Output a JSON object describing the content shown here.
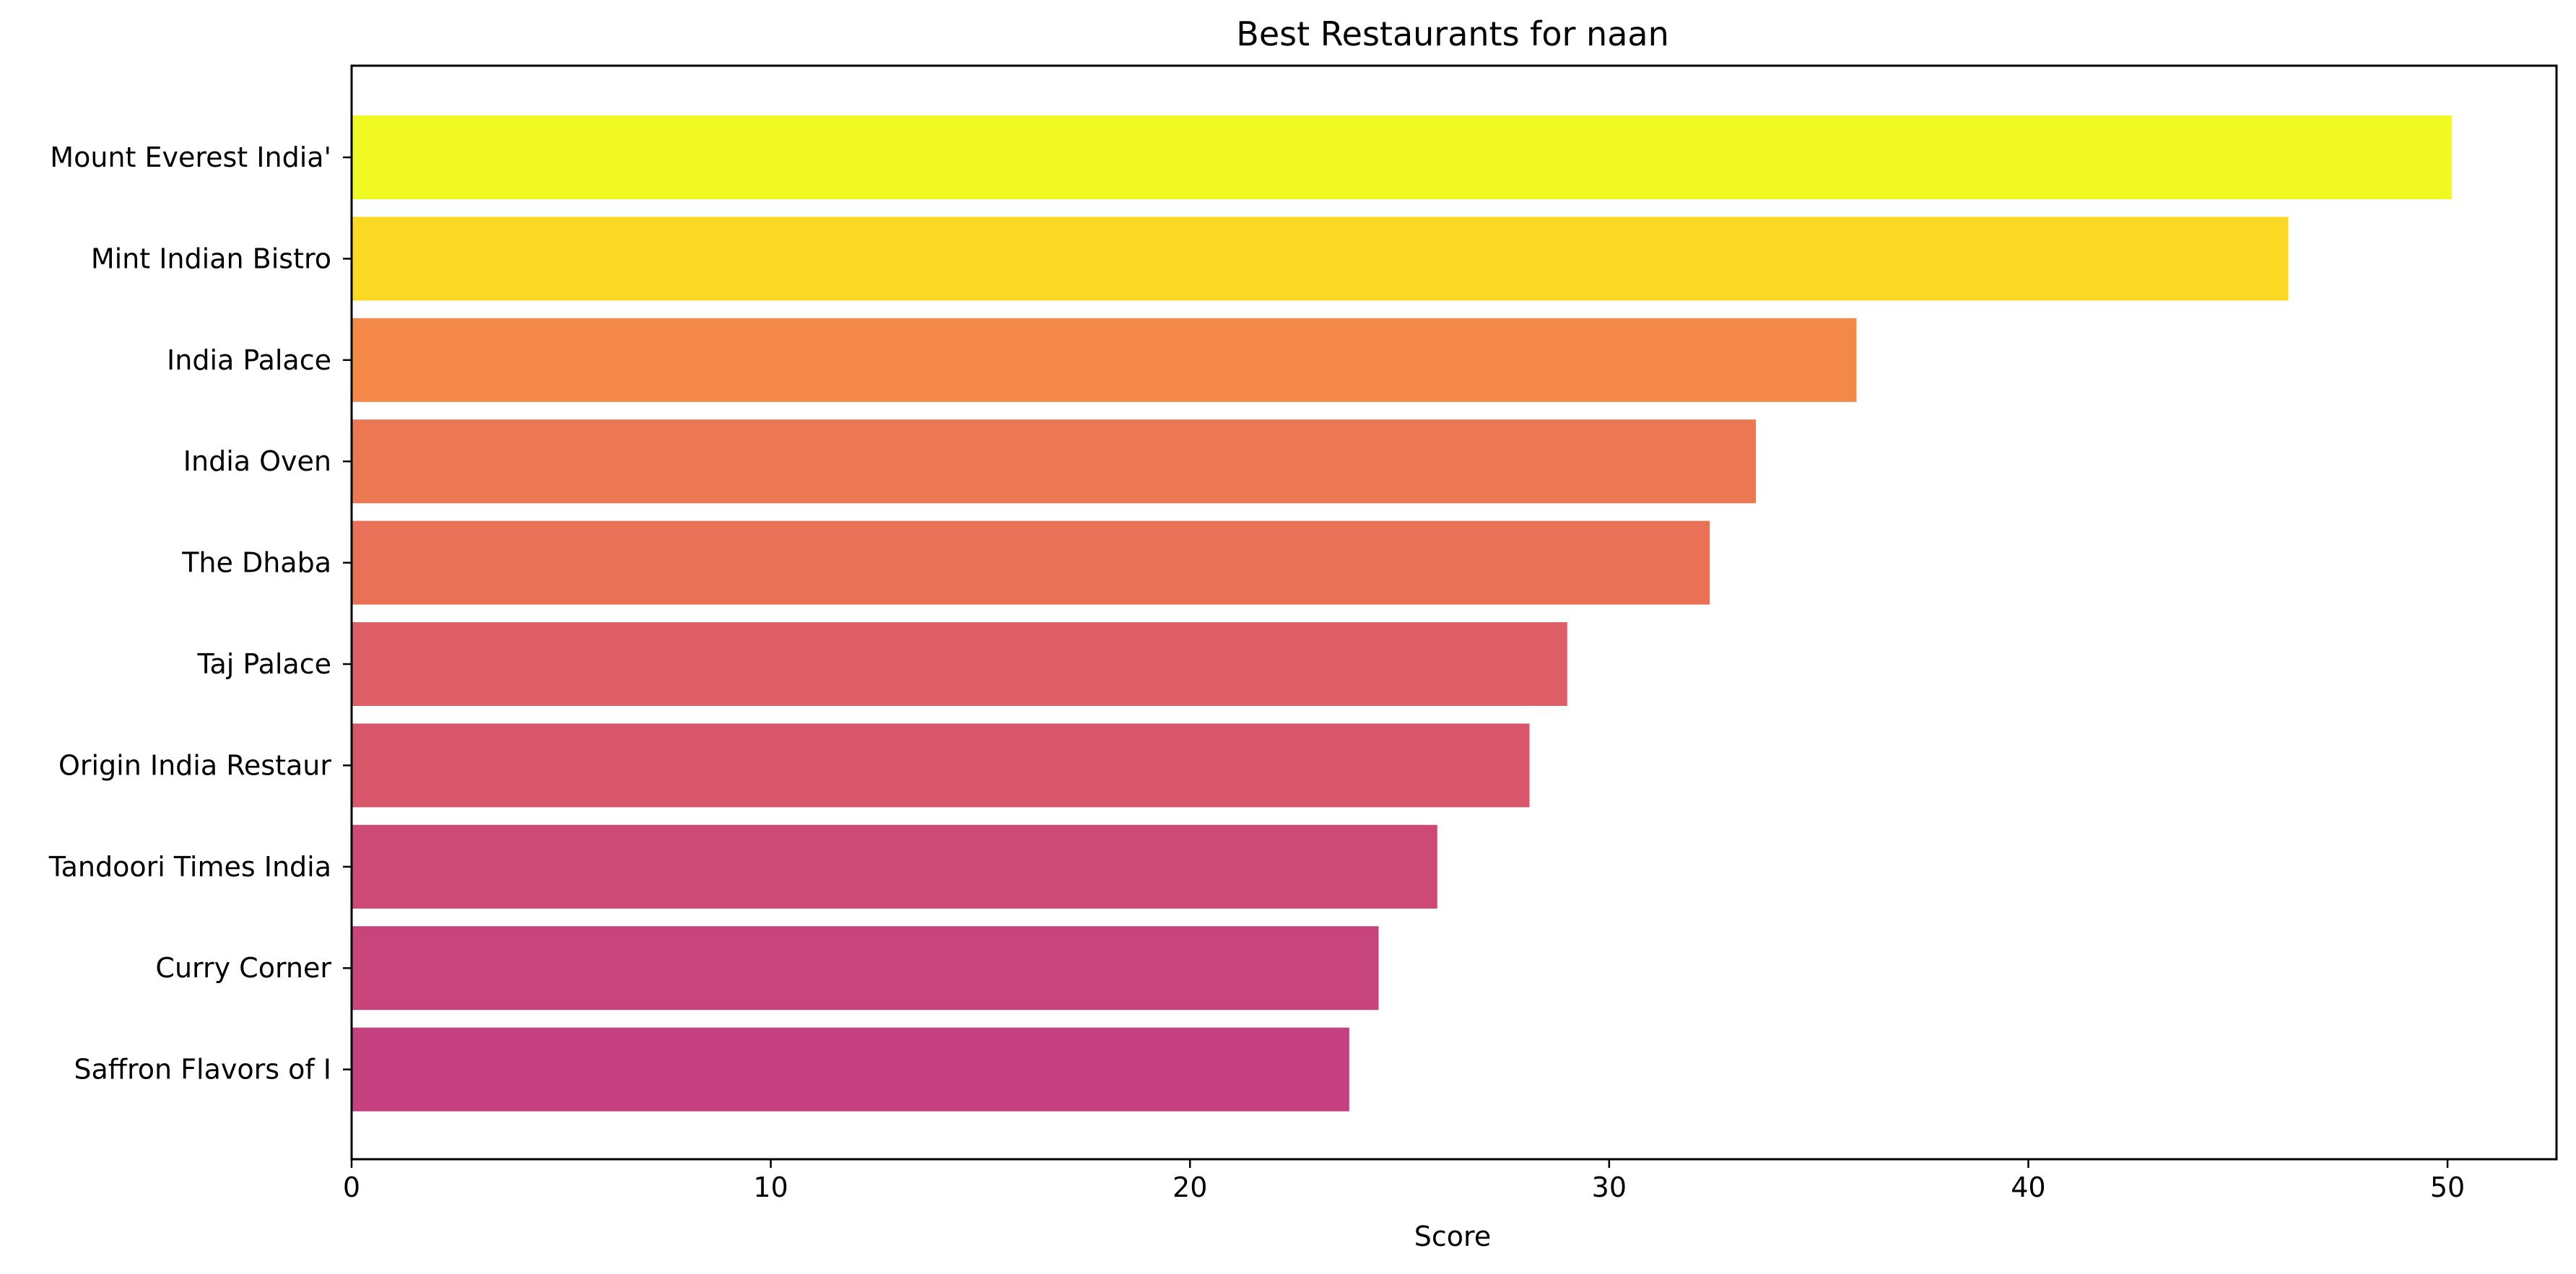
{
  "chart_data": {
    "type": "bar",
    "orientation": "horizontal",
    "title": "Best Restaurants for naan",
    "xlabel": "Score",
    "ylabel": "",
    "xlim": [
      0,
      52.6
    ],
    "x_ticks": [
      0,
      10,
      20,
      30,
      40,
      50
    ],
    "grid": false,
    "legend": "none",
    "categories": [
      "Mount Everest India'",
      "Mint Indian Bistro",
      "India Palace",
      "India Oven",
      "The Dhaba",
      "Taj Palace",
      "Origin India Restaur",
      "Tandoori Times India",
      "Curry Corner",
      "Saffron Flavors of I"
    ],
    "values": [
      50.1,
      46.2,
      35.9,
      33.5,
      32.4,
      29.0,
      28.1,
      25.9,
      24.5,
      23.8
    ],
    "colors": [
      "#f0f921",
      "#fad824",
      "#f48849",
      "#ec7853",
      "#e97158",
      "#de5f66",
      "#d8576b",
      "#ce4a76",
      "#c8457b",
      "#c5407e"
    ]
  }
}
